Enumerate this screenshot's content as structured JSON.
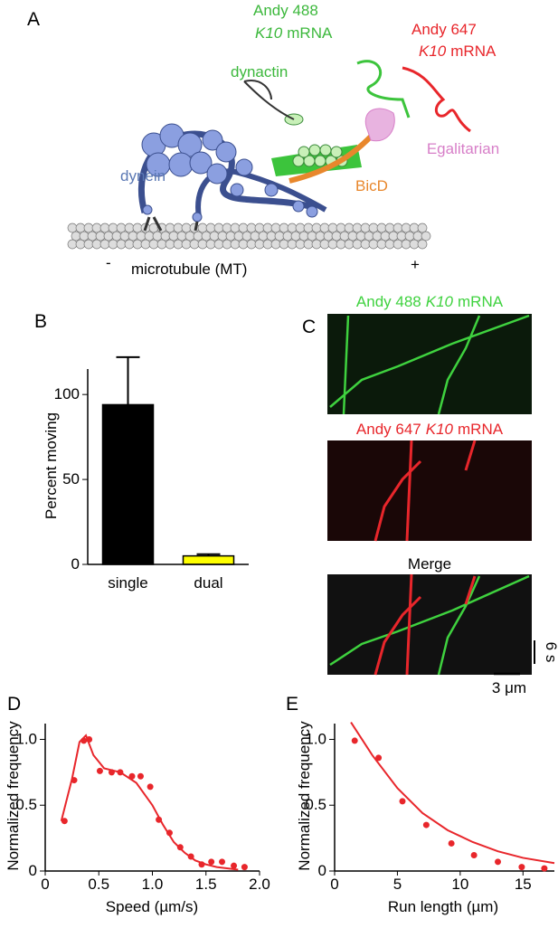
{
  "panel_labels": [
    "A",
    "B",
    "C",
    "D",
    "E"
  ],
  "diagram": {
    "andy_488": {
      "name": "Andy 488",
      "gene": "K10",
      "rna": "mRNA"
    },
    "andy_647": {
      "name": "Andy 647",
      "gene": "K10",
      "rna": "mRNA"
    },
    "dynactin": "dynactin",
    "egalitarian": "Egalitarian",
    "dynein": "dynein",
    "bicd": "BicD",
    "microtubule": "microtubule (MT)",
    "minus_end": "-",
    "plus_end": "+"
  },
  "kymographs": {
    "green_title": {
      "name": "Andy 488",
      "gene": "K10",
      "rna": "mRNA"
    },
    "red_title": {
      "name": "Andy 647",
      "gene": "K10",
      "rna": "mRNA"
    },
    "merge_title": "Merge",
    "time_scale": "6 s",
    "length_scale": "3 μm"
  },
  "chart_data": [
    {
      "type": "bar",
      "ylabel": "Percent moving",
      "categories": [
        "single",
        "dual"
      ],
      "values": [
        94,
        5
      ],
      "errors": [
        28,
        1
      ],
      "colors": [
        "#000000",
        "#ffff00"
      ],
      "ylim": [
        0,
        115
      ],
      "yticks": [
        0,
        50,
        100
      ]
    },
    {
      "type": "scatter",
      "xlabel": "Speed (µm/s)",
      "ylabel": "Normalized frequency",
      "color": "#e8262b",
      "points": {
        "x": [
          0.18,
          0.27,
          0.36,
          0.41,
          0.51,
          0.62,
          0.7,
          0.81,
          0.89,
          0.98,
          1.06,
          1.16,
          1.26,
          1.36,
          1.46,
          1.55,
          1.65,
          1.76,
          1.86
        ],
        "y": [
          0.38,
          0.69,
          0.99,
          1.0,
          0.76,
          0.75,
          0.75,
          0.72,
          0.72,
          0.64,
          0.39,
          0.29,
          0.18,
          0.11,
          0.05,
          0.07,
          0.07,
          0.04,
          0.03
        ]
      },
      "fit": {
        "x": [
          0.15,
          0.25,
          0.32,
          0.38,
          0.45,
          0.55,
          0.7,
          0.85,
          1.0,
          1.1,
          1.2,
          1.3,
          1.4,
          1.5,
          1.6,
          1.8
        ],
        "y": [
          0.38,
          0.7,
          0.98,
          1.03,
          0.88,
          0.78,
          0.75,
          0.67,
          0.5,
          0.35,
          0.22,
          0.14,
          0.08,
          0.05,
          0.03,
          0.01
        ]
      },
      "xlim": [
        0,
        2
      ],
      "xticks": [
        0,
        0.5,
        {
          "value": 1,
          "label": "1.0"
        },
        1.5,
        {
          "value": 2,
          "label": "2.0"
        }
      ],
      "ylim": [
        0,
        1.12
      ],
      "yticks": [
        0,
        0.5,
        {
          "value": 1,
          "label": "1.0"
        }
      ]
    },
    {
      "type": "scatter",
      "xlabel": "Run length (µm)",
      "ylabel": "Normalized frequency",
      "color": "#e8262b",
      "points": {
        "x": [
          1.6,
          3.5,
          5.4,
          7.3,
          9.3,
          11.1,
          13.0,
          14.9,
          16.7
        ],
        "y": [
          0.99,
          0.86,
          0.53,
          0.35,
          0.21,
          0.12,
          0.07,
          0.03,
          0.02
        ]
      },
      "fit": {
        "x": [
          1.3,
          3,
          5,
          7,
          9,
          11,
          13,
          15,
          17.5
        ],
        "y": [
          1.13,
          0.88,
          0.63,
          0.44,
          0.31,
          0.22,
          0.15,
          0.1,
          0.06
        ]
      },
      "xlim": [
        0,
        17.5
      ],
      "xticks": [
        0,
        5,
        10,
        15
      ],
      "ylim": [
        0,
        1.12
      ],
      "yticks": [
        0,
        0.5,
        {
          "value": 1,
          "label": "1.0"
        }
      ]
    }
  ]
}
